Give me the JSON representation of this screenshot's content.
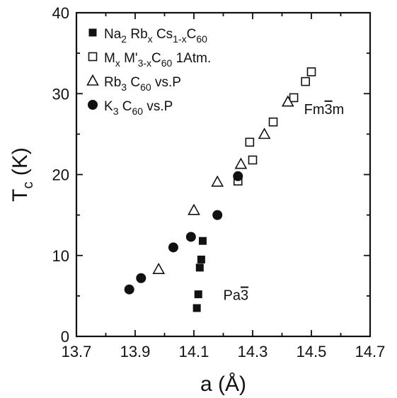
{
  "chart_data": {
    "type": "scatter",
    "title": "",
    "xlabel": "a (Å)",
    "ylabel": "Tc (K)",
    "xlim": [
      13.7,
      14.7
    ],
    "ylim": [
      0,
      40
    ],
    "xticks": [
      "13.7",
      "13.9",
      "14.1",
      "14.3",
      "14.5",
      "14.7"
    ],
    "yticks": [
      "0",
      "10",
      "20",
      "30",
      "40"
    ],
    "grid": false,
    "legend_position": "top-left",
    "series": [
      {
        "name": "Na2RbxCs1-xC60",
        "marker": "filled-square",
        "points": [
          [
            14.11,
            3.5
          ],
          [
            14.115,
            5.2
          ],
          [
            14.12,
            8.5
          ],
          [
            14.125,
            9.5
          ],
          [
            14.13,
            11.8
          ]
        ]
      },
      {
        "name": "MxM'3-xC60 1Atm.",
        "marker": "open-square",
        "points": [
          [
            14.25,
            19.2
          ],
          [
            14.29,
            24.0
          ],
          [
            14.3,
            21.8
          ],
          [
            14.37,
            26.5
          ],
          [
            14.44,
            29.5
          ],
          [
            14.48,
            31.5
          ],
          [
            14.5,
            32.7
          ]
        ]
      },
      {
        "name": "Rb3C60 vs.P",
        "marker": "open-triangle",
        "points": [
          [
            13.98,
            8.3
          ],
          [
            14.1,
            15.6
          ],
          [
            14.18,
            19.1
          ],
          [
            14.26,
            21.3
          ],
          [
            14.34,
            25.0
          ],
          [
            14.42,
            29.0
          ]
        ]
      },
      {
        "name": "K3C60 vs.P",
        "marker": "filled-circle",
        "points": [
          [
            13.88,
            5.8
          ],
          [
            13.92,
            7.2
          ],
          [
            14.03,
            11.0
          ],
          [
            14.09,
            12.3
          ],
          [
            14.18,
            15.0
          ],
          [
            14.25,
            19.8
          ]
        ]
      }
    ],
    "annotations": [
      {
        "text_base": "Fm",
        "text_bar": "3",
        "text_end": "m",
        "x": 14.475,
        "y": 27.5
      },
      {
        "text_base": "Pa",
        "text_bar": "3",
        "text_end": "",
        "x": 14.2,
        "y": 4.5
      }
    ]
  },
  "legend": [
    {
      "parts": [
        [
          "Na",
          0
        ],
        [
          "2",
          1
        ],
        [
          " Rb",
          0
        ],
        [
          "x",
          1
        ],
        [
          " Cs",
          0
        ],
        [
          "1-x",
          1
        ],
        [
          "C",
          0
        ],
        [
          "60",
          1
        ]
      ]
    },
    {
      "parts": [
        [
          "M",
          0
        ],
        [
          "x",
          1
        ],
        [
          " M'",
          0
        ],
        [
          "3-x",
          1
        ],
        [
          "C",
          0
        ],
        [
          "60",
          1
        ],
        [
          " 1Atm.",
          0
        ]
      ]
    },
    {
      "parts": [
        [
          "Rb",
          0
        ],
        [
          "3",
          1
        ],
        [
          " C",
          0
        ],
        [
          "60",
          1
        ],
        [
          " vs.P",
          0
        ]
      ]
    },
    {
      "parts": [
        [
          "K",
          0
        ],
        [
          "3",
          1
        ],
        [
          " C",
          0
        ],
        [
          "60",
          1
        ],
        [
          " vs.P",
          0
        ]
      ]
    }
  ],
  "ylabel_parts": [
    [
      "T",
      0
    ],
    [
      "c",
      1
    ],
    [
      " (K)",
      0
    ]
  ]
}
